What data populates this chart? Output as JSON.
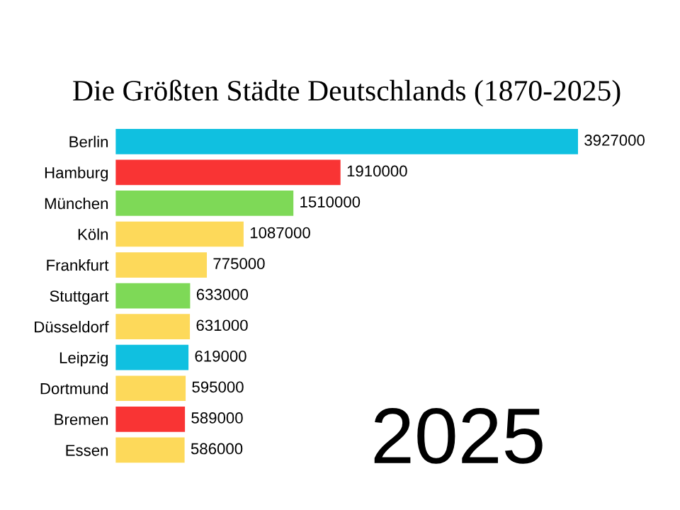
{
  "chart_data": {
    "type": "bar",
    "orientation": "horizontal",
    "title": "Die Größten Städte Deutschlands (1870-2025)",
    "categories": [
      "Berlin",
      "Hamburg",
      "München",
      "Köln",
      "Frankfurt",
      "Stuttgart",
      "Düsseldorf",
      "Leipzig",
      "Dortmund",
      "Bremen",
      "Essen"
    ],
    "values": [
      3927000,
      1910000,
      1510000,
      1087000,
      775000,
      633000,
      631000,
      619000,
      595000,
      589000,
      586000
    ],
    "colors": [
      "#10c0e0",
      "#f93434",
      "#7ed957",
      "#fdd95a",
      "#fdd95a",
      "#7ed957",
      "#fdd95a",
      "#10c0e0",
      "#fdd95a",
      "#f93434",
      "#fdd95a"
    ],
    "data_labels": true,
    "annotations": [
      "2025"
    ]
  }
}
